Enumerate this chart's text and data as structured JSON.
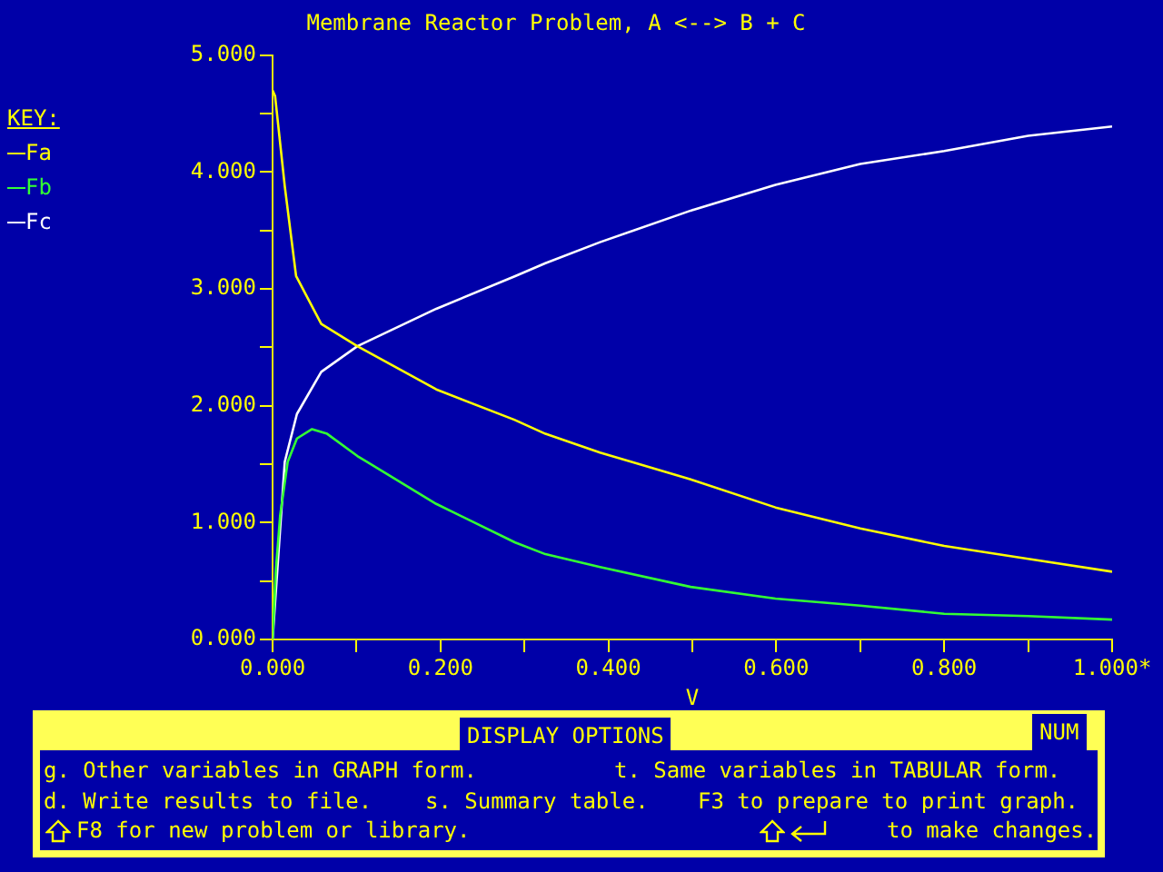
{
  "chart_data": {
    "type": "line",
    "title": "Membrane Reactor Problem, A <--> B + C",
    "xlabel": "V",
    "legend_title": "KEY:",
    "legend": "left",
    "xlim": [
      0,
      1
    ],
    "ylim": [
      0,
      5
    ],
    "xticks": [
      {
        "value": 0,
        "label": "0.000"
      },
      {
        "value": 0.1,
        "label": null
      },
      {
        "value": 0.2,
        "label": "0.200"
      },
      {
        "value": 0.3,
        "label": null
      },
      {
        "value": 0.4,
        "label": "0.400"
      },
      {
        "value": 0.5,
        "label": null
      },
      {
        "value": 0.6,
        "label": "0.600"
      },
      {
        "value": 0.7,
        "label": null
      },
      {
        "value": 0.8,
        "label": "0.800"
      },
      {
        "value": 0.9,
        "label": null
      },
      {
        "value": 1,
        "label": "1.000*"
      }
    ],
    "yticks": [
      {
        "value": 0,
        "label": "0.000"
      },
      {
        "value": 0.5,
        "label": null
      },
      {
        "value": 1,
        "label": "1.000"
      },
      {
        "value": 1.5,
        "label": null
      },
      {
        "value": 2,
        "label": "2.000"
      },
      {
        "value": 2.5,
        "label": null
      },
      {
        "value": 3,
        "label": "3.000"
      },
      {
        "value": 3.5,
        "label": null
      },
      {
        "value": 4,
        "label": "4.000"
      },
      {
        "value": 4.5,
        "label": null
      },
      {
        "value": 5,
        "label": "5.000"
      }
    ],
    "series": [
      {
        "name": "Fa",
        "color": "#ffff00",
        "x": [
          0,
          0.003,
          0.0145,
          0.028,
          0.058,
          0.101,
          0.195,
          0.288,
          0.325,
          0.39,
          0.498,
          0.599,
          0.7,
          0.8,
          0.9,
          1.0
        ],
        "values": [
          4.7,
          4.65,
          3.88,
          3.11,
          2.7,
          2.51,
          2.14,
          1.88,
          1.76,
          1.6,
          1.37,
          1.13,
          0.95,
          0.8,
          0.69,
          0.58
        ]
      },
      {
        "name": "Fb",
        "color": "#33ff33",
        "x": [
          0,
          0.004,
          0.009,
          0.018,
          0.029,
          0.047,
          0.065,
          0.101,
          0.195,
          0.289,
          0.325,
          0.39,
          0.498,
          0.599,
          0.7,
          0.8,
          0.9,
          1.0
        ],
        "values": [
          0,
          0.6,
          1.06,
          1.52,
          1.72,
          1.8,
          1.76,
          1.57,
          1.16,
          0.83,
          0.73,
          0.62,
          0.45,
          0.35,
          0.29,
          0.22,
          0.2,
          0.17
        ]
      },
      {
        "name": "Fc",
        "color": "#ffffff",
        "x": [
          0,
          0.0145,
          0.029,
          0.058,
          0.101,
          0.195,
          0.289,
          0.325,
          0.39,
          0.498,
          0.599,
          0.7,
          0.8,
          0.9,
          1.0
        ],
        "values": [
          0,
          1.52,
          1.93,
          2.29,
          2.51,
          2.83,
          3.11,
          3.22,
          3.4,
          3.67,
          3.89,
          4.07,
          4.18,
          4.31,
          4.39
        ]
      }
    ],
    "annotations": [
      "DISPLAY OPTIONS",
      "NUM",
      "g. Other variables in GRAPH form.",
      "t. Same variables in TABULAR form.",
      "d. Write results to file.",
      "s. Summary table.",
      "F3 to prepare to print graph.",
      "F8 for new problem or library.",
      "to make changes."
    ]
  }
}
